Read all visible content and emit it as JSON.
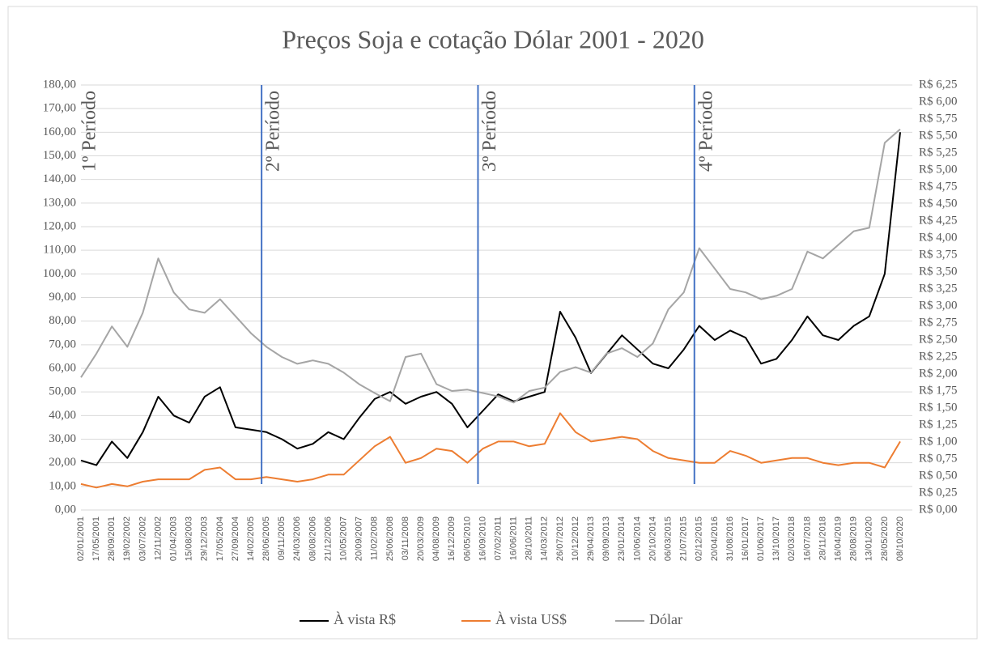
{
  "chart_data": {
    "type": "line",
    "title": "Preços Soja e cotação Dólar 2001 - 2020",
    "categories": [
      "02/01/2001",
      "17/05/2001",
      "28/09/2001",
      "19/02/2002",
      "03/07/2002",
      "12/11/2002",
      "01/04/2003",
      "15/08/2003",
      "29/12/2003",
      "17/05/2004",
      "27/09/2004",
      "14/02/2005",
      "28/06/2005",
      "09/11/2005",
      "24/03/2006",
      "08/08/2006",
      "21/12/2006",
      "10/05/2007",
      "20/09/2007",
      "11/02/2008",
      "25/06/2008",
      "03/11/2008",
      "20/03/2009",
      "04/08/2009",
      "16/12/2009",
      "06/05/2010",
      "16/09/2010",
      "07/02/2011",
      "16/06/2011",
      "28/10/2011",
      "14/03/2012",
      "26/07/2012",
      "10/12/2012",
      "29/04/2013",
      "09/09/2013",
      "23/01/2014",
      "10/06/2014",
      "20/10/2014",
      "06/03/2015",
      "21/07/2015",
      "02/12/2015",
      "20/04/2016",
      "31/08/2016",
      "16/01/2017",
      "01/06/2017",
      "13/10/2017",
      "02/03/2018",
      "16/07/2018",
      "28/11/2018",
      "16/04/2019",
      "28/08/2019",
      "13/01/2020",
      "28/05/2020",
      "08/10/2020"
    ],
    "series": [
      {
        "name": "À vista R$",
        "color": "#000000",
        "values": [
          21,
          19,
          29,
          22,
          33,
          48,
          40,
          37,
          48,
          52,
          35,
          34,
          33,
          30,
          26,
          28,
          33,
          30,
          39,
          47,
          50,
          45,
          48,
          50,
          45,
          35,
          42,
          49,
          46,
          48,
          50,
          84,
          73,
          58,
          66,
          74,
          68,
          62,
          60,
          68,
          78,
          72,
          76,
          73,
          62,
          64,
          72,
          82,
          74,
          72,
          78,
          82,
          100,
          160
        ]
      },
      {
        "name": "À vista US$",
        "color": "#ed7d31",
        "values": [
          11,
          9.5,
          11,
          10,
          12,
          13,
          13,
          13,
          17,
          18,
          13,
          13,
          14,
          13,
          12,
          13,
          15,
          15,
          21,
          27,
          31,
          20,
          22,
          26,
          25,
          20,
          26,
          29,
          29,
          27,
          28,
          41,
          33,
          29,
          30,
          31,
          30,
          25,
          22,
          21,
          20,
          20,
          25,
          23,
          20,
          21,
          22,
          22,
          20,
          19,
          20,
          20,
          18,
          29
        ]
      },
      {
        "name": "Dólar",
        "color": "#a5a5a5",
        "axis": "y2",
        "values": [
          1.95,
          2.3,
          2.7,
          2.4,
          2.9,
          3.7,
          3.2,
          2.95,
          2.9,
          3.1,
          2.85,
          2.6,
          2.4,
          2.25,
          2.15,
          2.2,
          2.15,
          2.02,
          1.85,
          1.72,
          1.6,
          2.25,
          2.3,
          1.85,
          1.75,
          1.77,
          1.72,
          1.67,
          1.58,
          1.75,
          1.8,
          2.03,
          2.1,
          2.02,
          2.3,
          2.38,
          2.25,
          2.45,
          2.95,
          3.2,
          3.85,
          3.55,
          3.25,
          3.2,
          3.1,
          3.15,
          3.25,
          3.8,
          3.7,
          3.9,
          4.1,
          4.15,
          5.4,
          5.6
        ]
      }
    ],
    "ylim": [
      0,
      180
    ],
    "yticks": [
      {
        "value": 0,
        "label": "0,00"
      },
      {
        "value": 10,
        "label": "10,00"
      },
      {
        "value": 20,
        "label": "20,00"
      },
      {
        "value": 30,
        "label": "30,00"
      },
      {
        "value": 40,
        "label": "40,00"
      },
      {
        "value": 50,
        "label": "50,00"
      },
      {
        "value": 60,
        "label": "60,00"
      },
      {
        "value": 70,
        "label": "70,00"
      },
      {
        "value": 80,
        "label": "80,00"
      },
      {
        "value": 90,
        "label": "90,00"
      },
      {
        "value": 100,
        "label": "100,00"
      },
      {
        "value": 110,
        "label": "110,00"
      },
      {
        "value": 120,
        "label": "120,00"
      },
      {
        "value": 130,
        "label": "130,00"
      },
      {
        "value": 140,
        "label": "140,00"
      },
      {
        "value": 150,
        "label": "150,00"
      },
      {
        "value": 160,
        "label": "160,00"
      },
      {
        "value": 170,
        "label": "170,00"
      },
      {
        "value": 180,
        "label": "180,00"
      }
    ],
    "y2lim": [
      0,
      6.25
    ],
    "y2ticks": [
      {
        "value": 0,
        "label": "R$ 0,00"
      },
      {
        "value": 0.25,
        "label": "R$ 0,25"
      },
      {
        "value": 0.5,
        "label": "R$ 0,50"
      },
      {
        "value": 0.75,
        "label": "R$ 0,75"
      },
      {
        "value": 1,
        "label": "R$ 1,00"
      },
      {
        "value": 1.25,
        "label": "R$ 1,25"
      },
      {
        "value": 1.5,
        "label": "R$ 1,50"
      },
      {
        "value": 1.75,
        "label": "R$ 1,75"
      },
      {
        "value": 2,
        "label": "R$ 2,00"
      },
      {
        "value": 2.25,
        "label": "R$ 2,25"
      },
      {
        "value": 2.5,
        "label": "R$ 2,50"
      },
      {
        "value": 2.75,
        "label": "R$ 2,75"
      },
      {
        "value": 3,
        "label": "R$ 3,00"
      },
      {
        "value": 3.25,
        "label": "R$ 3,25"
      },
      {
        "value": 3.5,
        "label": "R$ 3,50"
      },
      {
        "value": 3.75,
        "label": "R$ 3,75"
      },
      {
        "value": 4,
        "label": "R$ 4,00"
      },
      {
        "value": 4.25,
        "label": "R$ 4,25"
      },
      {
        "value": 4.5,
        "label": "R$ 4,50"
      },
      {
        "value": 4.75,
        "label": "R$ 4,75"
      },
      {
        "value": 5,
        "label": "R$ 5,00"
      },
      {
        "value": 5.25,
        "label": "R$ 5,25"
      },
      {
        "value": 5.5,
        "label": "R$ 5,50"
      },
      {
        "value": 5.75,
        "label": "R$ 5,75"
      },
      {
        "value": 6,
        "label": "R$ 6,00"
      },
      {
        "value": 6.25,
        "label": "R$ 6,25"
      }
    ],
    "grid": true,
    "legend": "bottom",
    "annotations": [
      {
        "text": "1º Período"
      },
      {
        "text": "2º Período",
        "x": "28/06/2005"
      },
      {
        "text": "3º Período",
        "x": "16/09/2010"
      },
      {
        "text": "4º Período",
        "x": "02/12/2015"
      }
    ]
  }
}
